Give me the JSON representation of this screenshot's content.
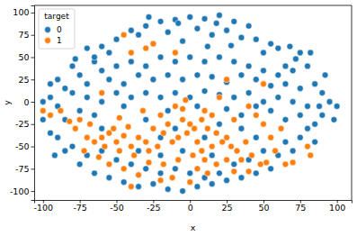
{
  "chart_data": {
    "type": "scatter",
    "x_label": "x",
    "y_label": "y",
    "legend": "upper left",
    "legend_title": "target",
    "marker": "circle",
    "xlim": [
      -106,
      110
    ],
    "ylim": [
      -110,
      108
    ],
    "xticks": [
      -100,
      -75,
      -50,
      -25,
      0,
      25,
      50,
      75,
      100
    ],
    "yticks": [
      -100,
      -75,
      -50,
      -25,
      0,
      25,
      50,
      75,
      100
    ],
    "series": [
      {
        "name": "0",
        "color": "#1f77b4",
        "x": [
          -40,
          -30,
          -20,
          -10,
          0,
          10,
          20,
          30,
          40,
          -50,
          -35,
          -15,
          5,
          15,
          25,
          35,
          45,
          55,
          60,
          -60,
          -55,
          -25,
          -5,
          12,
          28,
          50,
          -70,
          -65,
          68,
          75,
          65,
          -8,
          18,
          -28,
          -80,
          -90,
          -75,
          -60,
          -50,
          -40,
          -30,
          -20,
          -10,
          0,
          10,
          20,
          30,
          40,
          50,
          60,
          70,
          80,
          85,
          90,
          -85,
          -70,
          -55,
          -45,
          -35,
          -25,
          -15,
          -5,
          5,
          15,
          25,
          35,
          45,
          55,
          65,
          75,
          -95,
          -65,
          72,
          82,
          -78,
          92,
          88,
          -100,
          -95,
          -90,
          -80,
          -70,
          -60,
          -50,
          -40,
          -30,
          -20,
          -10,
          0,
          10,
          20,
          30,
          40,
          50,
          60,
          70,
          80,
          95,
          100,
          98,
          90,
          85,
          75,
          65,
          55,
          45,
          35,
          -85,
          -75,
          -65,
          -100,
          -45,
          -15,
          5,
          25,
          -90,
          -85,
          -80,
          -95,
          -70,
          -75,
          -65,
          -55,
          -45,
          -35,
          -25,
          -15,
          -5,
          5,
          15,
          25,
          35,
          45,
          55,
          60,
          70,
          75,
          80,
          65,
          50,
          45,
          40,
          30,
          20,
          10,
          0,
          -10,
          -20,
          -30,
          -40,
          -50,
          -60,
          -35,
          -20,
          -5,
          15,
          -10,
          35,
          20,
          -60,
          -30,
          85,
          -92,
          10,
          -20
        ],
        "values": [
          80,
          85,
          90,
          92,
          95,
          93,
          97,
          90,
          85,
          70,
          75,
          78,
          82,
          75,
          80,
          72,
          70,
          65,
          60,
          62,
          55,
          65,
          68,
          62,
          63,
          55,
          60,
          45,
          62,
          55,
          40,
          88,
          88,
          95,
          40,
          25,
          30,
          35,
          40,
          45,
          40,
          50,
          45,
          50,
          45,
          50,
          45,
          40,
          35,
          30,
          35,
          40,
          20,
          10,
          15,
          20,
          25,
          20,
          30,
          25,
          30,
          25,
          30,
          28,
          22,
          30,
          25,
          18,
          20,
          15,
          20,
          50,
          48,
          55,
          48,
          30,
          -5,
          0,
          5,
          -5,
          10,
          5,
          0,
          10,
          5,
          10,
          5,
          10,
          5,
          12,
          8,
          5,
          10,
          0,
          5,
          0,
          -5,
          0,
          -5,
          -20,
          -15,
          -25,
          -15,
          -20,
          -10,
          -5,
          -15,
          -20,
          -10,
          -15,
          -20,
          -5,
          -10,
          -5,
          -8,
          -40,
          -55,
          -50,
          -35,
          -60,
          -70,
          -80,
          -85,
          -90,
          -95,
          -92,
          -98,
          -100,
          -95,
          -92,
          -88,
          -85,
          -80,
          -75,
          -60,
          -55,
          -40,
          -30,
          -45,
          -55,
          -40,
          -65,
          -70,
          -80,
          -85,
          -80,
          -75,
          -80,
          -75,
          -70,
          -65,
          -55,
          -55,
          -60,
          -55,
          -60,
          -30,
          -30,
          -25,
          -30,
          -20,
          -45,
          -60,
          -40,
          -40
        ]
      },
      {
        "name": "1",
        "color": "#ff7f0e",
        "x": [
          -60,
          -55,
          -50,
          -45,
          -40,
          -48,
          -58,
          -65,
          -70,
          -52,
          -42,
          -35,
          -30,
          -38,
          -28,
          -22,
          -18,
          -12,
          -8,
          -2,
          3,
          8,
          -5,
          0,
          12,
          18,
          22,
          28,
          25,
          32,
          15,
          5,
          -15,
          -25,
          -20,
          10,
          -10,
          30,
          38,
          42,
          48,
          35,
          25,
          18,
          10,
          2,
          -8,
          -18,
          -28,
          -45,
          -55,
          -62,
          -72,
          -78,
          -82,
          -75,
          -100,
          -95,
          -88,
          -68,
          -48,
          -32,
          -12,
          0,
          -20,
          12,
          30,
          40,
          52,
          65,
          80,
          82,
          70,
          58,
          55,
          62,
          50,
          45,
          40,
          20,
          -3,
          -25,
          -40,
          -45,
          -10,
          -30,
          50,
          25,
          -60,
          -40,
          5,
          -5,
          15,
          -35,
          8
        ],
        "values": [
          -40,
          -35,
          -45,
          -38,
          -50,
          -55,
          -50,
          -45,
          -40,
          -30,
          -28,
          -40,
          -45,
          -60,
          -55,
          -50,
          -35,
          -45,
          -40,
          -35,
          -30,
          -20,
          -20,
          -25,
          -30,
          -35,
          -45,
          -50,
          -40,
          -55,
          -50,
          -45,
          -25,
          -30,
          -15,
          -10,
          -5,
          -20,
          -45,
          -60,
          -70,
          -65,
          -65,
          -70,
          -65,
          -60,
          -65,
          -70,
          -68,
          -75,
          -70,
          -62,
          -55,
          -30,
          -22,
          -20,
          -10,
          -15,
          -10,
          -25,
          -18,
          -10,
          -85,
          -90,
          -88,
          -80,
          -78,
          -78,
          -68,
          -70,
          -50,
          -60,
          -68,
          -55,
          -40,
          -30,
          -25,
          -15,
          -5,
          5,
          2,
          65,
          55,
          75,
          55,
          60,
          20,
          25,
          10,
          -95,
          -75,
          -8,
          -15,
          -82,
          -55
        ]
      }
    ]
  }
}
